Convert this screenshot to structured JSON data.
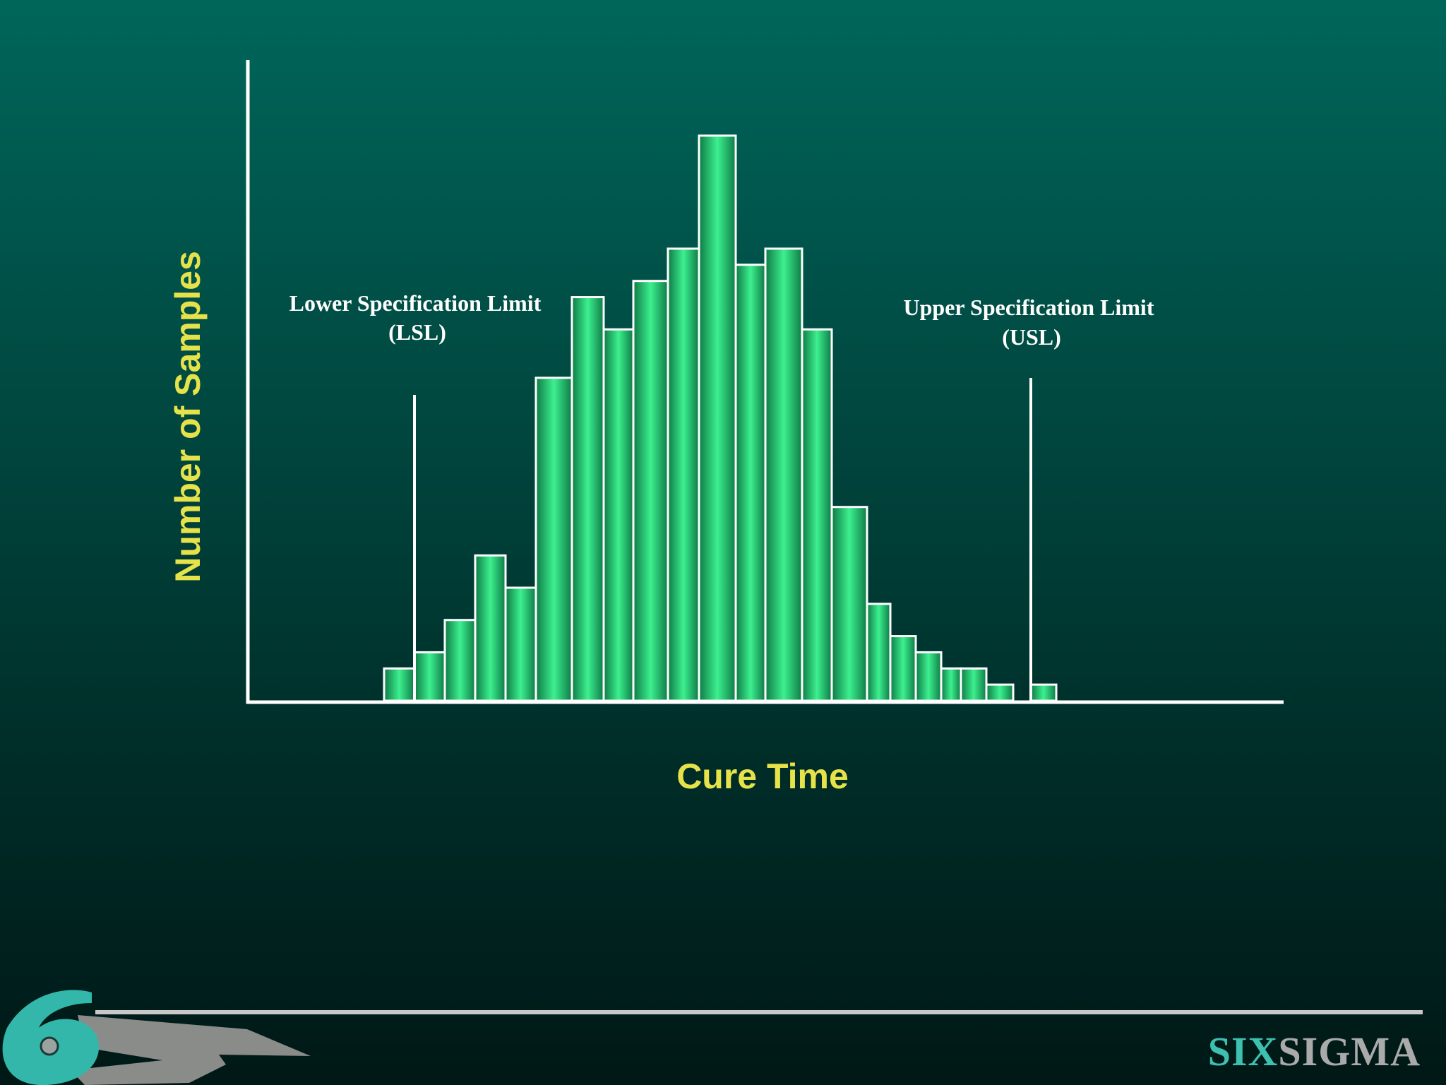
{
  "chart_data": {
    "type": "bar",
    "xlabel": "Cure Time",
    "ylabel": "Number of Samples",
    "ylim": [
      0,
      36
    ],
    "values": [
      2,
      3,
      5,
      9,
      7,
      20,
      25,
      23,
      26,
      28,
      35,
      27,
      28,
      23,
      12,
      6,
      4,
      3,
      2,
      2,
      1,
      0,
      1
    ],
    "annotations": [
      {
        "name": "lsl",
        "line1": "Lower Specification Limit",
        "line2": "(LSL)"
      },
      {
        "name": "usl",
        "line1": "Upper Specification Limit",
        "line2": "(USL)"
      }
    ],
    "grid": false,
    "bar_color": "#2ed47a",
    "axis_color": "#ffffff",
    "label_color": "#e6e24a"
  },
  "footer": {
    "brand_six": "SIX",
    "brand_sigma": "SIGMA",
    "logo_icon": "six-sigma-logo-icon"
  }
}
